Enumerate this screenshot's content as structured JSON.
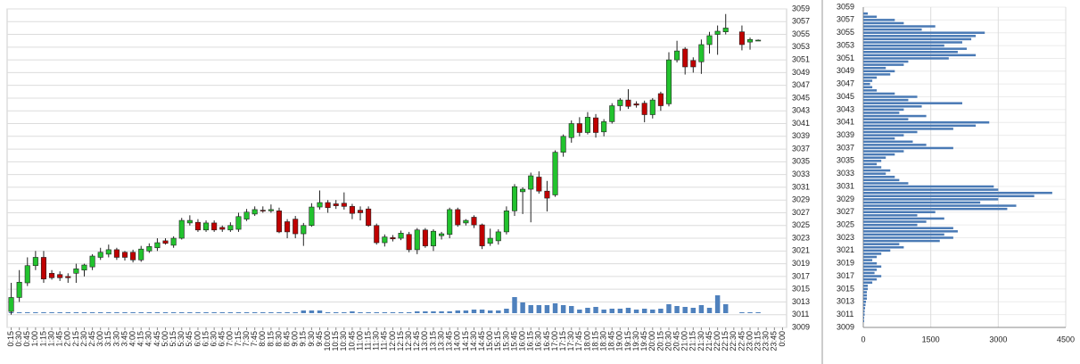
{
  "chart_data": [
    {
      "type": "candlestick",
      "categories": [
        "0:15",
        "0:30",
        "0:45",
        "1:00",
        "1:15",
        "1:30",
        "1:45",
        "2:00",
        "2:15",
        "2:30",
        "2:45",
        "3:00",
        "3:15",
        "3:30",
        "3:45",
        "4:00",
        "4:15",
        "4:30",
        "4:45",
        "5:00",
        "5:15",
        "5:30",
        "5:45",
        "6:00",
        "6:15",
        "6:30",
        "6:45",
        "7:00",
        "7:15",
        "7:30",
        "7:45",
        "8:00",
        "8:15",
        "8:30",
        "8:45",
        "9:00",
        "9:15",
        "9:30",
        "9:45",
        "10:00",
        "10:15",
        "10:30",
        "10:45",
        "11:00",
        "11:15",
        "11:30",
        "11:45",
        "12:00",
        "12:15",
        "12:30",
        "12:45",
        "13:00",
        "13:15",
        "13:30",
        "13:45",
        "14:00",
        "14:15",
        "14:30",
        "14:45",
        "15:00",
        "15:15",
        "15:30",
        "15:45",
        "16:00",
        "16:15",
        "16:30",
        "16:45",
        "17:00",
        "17:15",
        "17:30",
        "17:45",
        "18:00",
        "18:15",
        "18:30",
        "18:45",
        "19:00",
        "19:15",
        "19:30",
        "19:45",
        "20:00",
        "20:15",
        "20:30",
        "20:45",
        "21:00",
        "21:15",
        "21:30",
        "21:45",
        "22:00",
        "22:15",
        "22:30",
        "22:45",
        "23:00",
        "23:15",
        "23:30",
        "23:45",
        "0:00"
      ],
      "open": [
        3011.5,
        3013.7,
        3016,
        3018.7,
        3020,
        3017.5,
        3017.3,
        3017,
        3017.5,
        3018,
        3018.5,
        3020,
        3020.5,
        3021.2,
        3020.8,
        3020.8,
        3019.6,
        3021,
        3021.5,
        3022.6,
        3021.9,
        3023,
        3025.4,
        3025.5,
        3024.3,
        3025.4,
        3024.7,
        3024.3,
        3024.4,
        3026,
        3026.8,
        3027.4,
        3027.3,
        3027.3,
        3025.6,
        3026,
        3023.7,
        3025,
        3027.9,
        3028.6,
        3028.4,
        3028.5,
        3028,
        3027.4,
        3027.6,
        3025,
        3022.3,
        3023.1,
        3023,
        3023.6,
        3021.2,
        3024.3,
        3021.8,
        3023.4,
        3023.6,
        3027.5,
        3025.4,
        3026.3,
        3025.1,
        3022.2,
        3022.6,
        3024,
        3027.3,
        3030.3,
        3030.7,
        3032.6,
        3030.4,
        3029.8,
        3036.5,
        3038.8,
        3041,
        3039.6,
        3041.9,
        3039.7,
        3041.3,
        3043.8,
        3044.7,
        3044.1,
        3044.2,
        3042.4,
        3045.7,
        3044.1,
        3051,
        3052.7,
        3050.9,
        3050.7,
        3053.4,
        3055,
        3055.4,
        null,
        3055.4,
        3053.8,
        3054.1,
        null,
        null,
        null
      ],
      "high": [
        3016,
        3018,
        3020,
        3021,
        3021,
        3018,
        3017.8,
        3017.5,
        3019,
        3019,
        3020.5,
        3021.5,
        3022,
        3021.5,
        3021,
        3021.2,
        3021.8,
        3022.2,
        3023,
        3023,
        3023.3,
        3026.2,
        3026.6,
        3026,
        3025.8,
        3025.8,
        3025,
        3025.5,
        3027,
        3027.6,
        3028,
        3028,
        3028.3,
        3027.8,
        3026,
        3026.5,
        3025.4,
        3028.5,
        3030.5,
        3029,
        3029,
        3030.2,
        3028.4,
        3028,
        3028,
        3025.3,
        3023.6,
        3023.5,
        3024.2,
        3024,
        3024.6,
        3024.6,
        3024.4,
        3024,
        3027.8,
        3027.8,
        3026,
        3026.6,
        3025.3,
        3024.5,
        3024.4,
        3028,
        3031.5,
        3031,
        3033.3,
        3033.5,
        3032,
        3036.8,
        3039.3,
        3041.5,
        3042,
        3042.8,
        3042.5,
        3041.7,
        3044.2,
        3045,
        3046.4,
        3044.5,
        3044.6,
        3045,
        3046,
        3052.2,
        3054,
        3053,
        3051.4,
        3054.2,
        3055.4,
        3056.4,
        3058.2,
        null,
        3056.4,
        3054.5,
        3054.2,
        null,
        null,
        null
      ],
      "low": [
        3011,
        3013,
        3015.5,
        3018,
        3016,
        3016.5,
        3016.3,
        3016,
        3016,
        3017,
        3018,
        3019.6,
        3020,
        3019.6,
        3019.5,
        3019.2,
        3019.3,
        3020.7,
        3021,
        3022,
        3021.5,
        3022.8,
        3025,
        3024,
        3024,
        3024,
        3024,
        3024,
        3024,
        3025.7,
        3026.5,
        3027,
        3027,
        3023.8,
        3023,
        3023,
        3021.8,
        3024.8,
        3027.5,
        3027,
        3027.6,
        3027.5,
        3026,
        3025.8,
        3024.8,
        3022,
        3021.7,
        3022.5,
        3022.7,
        3020.8,
        3020.5,
        3021.5,
        3021,
        3022.8,
        3023,
        3024.8,
        3025,
        3024.6,
        3021.3,
        3021.8,
        3022,
        3023.6,
        3026.5,
        3026.8,
        3025.5,
        3030,
        3027.2,
        3029.5,
        3035.8,
        3038,
        3039,
        3039.3,
        3038.8,
        3039,
        3041,
        3043,
        3043.3,
        3043.5,
        3041.2,
        3041.8,
        3043,
        3043.7,
        3050.6,
        3048.7,
        3049,
        3048.8,
        3052,
        3051.8,
        3055,
        null,
        3052.5,
        3052.6,
        3054,
        null,
        null,
        null
      ],
      "close": [
        3013.7,
        3016.1,
        3018.7,
        3020,
        3016.6,
        3016.8,
        3016.8,
        3016.8,
        3018.2,
        3018.8,
        3020.2,
        3020.8,
        3021.2,
        3020,
        3020,
        3019.6,
        3021.3,
        3021.7,
        3022.3,
        3022.2,
        3023,
        3025.8,
        3025.8,
        3024.3,
        3025.4,
        3024.3,
        3024.4,
        3025,
        3026.4,
        3027.1,
        3027.5,
        3027.3,
        3027.5,
        3024,
        3024,
        3023.7,
        3025,
        3027.9,
        3028.6,
        3027.8,
        3028.1,
        3028,
        3026.9,
        3027,
        3025,
        3022.3,
        3023.2,
        3022.9,
        3023.8,
        3021.2,
        3024.3,
        3021.8,
        3024.1,
        3023.7,
        3027.5,
        3025.1,
        3025.8,
        3025.1,
        3021.8,
        3023,
        3024,
        3027.3,
        3031.1,
        3030.7,
        3032.8,
        3030.4,
        3029.3,
        3036.5,
        3039,
        3041,
        3039.6,
        3042,
        3039.6,
        3041.3,
        3043.8,
        3044.7,
        3043.7,
        3043.9,
        3042.4,
        3044.7,
        3043.8,
        3051,
        3052.4,
        3049.9,
        3049.9,
        3053.4,
        3054.8,
        3055.5,
        3056,
        null,
        3053.4,
        3054.2,
        3054.1,
        null,
        null,
        null
      ],
      "volume": [
        1,
        1,
        1,
        1,
        1,
        1,
        1,
        1,
        1,
        1,
        1,
        1,
        1,
        1,
        1,
        1,
        1,
        1,
        1,
        1,
        1,
        1,
        1,
        1,
        1,
        1,
        1,
        1,
        1,
        1,
        1,
        1,
        1,
        1,
        1,
        1,
        3,
        3,
        3,
        1,
        1,
        1,
        2,
        1,
        1,
        1,
        1,
        1,
        1,
        1,
        2,
        2,
        2,
        2,
        2,
        3,
        3,
        4,
        4,
        3,
        3,
        5,
        18,
        12,
        9,
        9,
        9,
        11,
        9,
        8,
        4,
        6,
        7,
        4,
        5,
        5,
        6,
        4,
        5,
        4,
        5,
        10,
        8,
        7,
        6,
        9,
        6,
        20,
        10,
        null,
        1,
        1,
        1,
        null,
        null,
        null
      ],
      "up_color": "#22c32e",
      "down_color": "#c00000",
      "volume_color": "#4f81bd",
      "ylim": [
        3009,
        3059
      ],
      "yticks": [
        3009,
        3011,
        3013,
        3015,
        3017,
        3019,
        3021,
        3023,
        3025,
        3027,
        3029,
        3031,
        3033,
        3035,
        3037,
        3039,
        3041,
        3043,
        3045,
        3047,
        3049,
        3051,
        3053,
        3055,
        3057,
        3059
      ],
      "y2lim": [
        -16,
        341
      ],
      "grid": true
    },
    {
      "type": "bar",
      "orientation": "horizontal",
      "levels": [
        3058,
        3057.5,
        3057,
        3056.5,
        3056,
        3055.5,
        3055,
        3054.5,
        3054,
        3053.5,
        3053,
        3052.5,
        3052,
        3051.5,
        3051,
        3050.5,
        3050,
        3049.5,
        3049,
        3048.5,
        3048,
        3047.5,
        3047,
        3046.5,
        3046,
        3045.5,
        3045,
        3044.5,
        3044,
        3043.5,
        3043,
        3042.5,
        3042,
        3041.5,
        3041,
        3040.5,
        3040,
        3039.5,
        3039,
        3038.5,
        3038,
        3037.5,
        3037,
        3036.5,
        3036,
        3035.5,
        3035,
        3034.5,
        3034,
        3033.5,
        3033,
        3032.5,
        3032,
        3031.5,
        3031,
        3030.5,
        3030,
        3029.5,
        3029,
        3028.5,
        3028,
        3027.5,
        3027,
        3026.5,
        3026,
        3025.5,
        3025,
        3024.5,
        3024,
        3023.5,
        3023,
        3022.5,
        3022,
        3021.5,
        3021,
        3020.5,
        3020,
        3019.5,
        3019,
        3018.5,
        3018,
        3017.5,
        3017,
        3016.5,
        3016,
        3015.5,
        3015,
        3014.5,
        3014,
        3013.5,
        3013,
        3012.5,
        3012,
        3011.5,
        3011,
        3010.5,
        3010
      ],
      "values": [
        100,
        300,
        700,
        900,
        1600,
        1300,
        2700,
        2500,
        2400,
        2200,
        1800,
        2300,
        2100,
        2500,
        1900,
        1000,
        900,
        500,
        700,
        600,
        300,
        200,
        150,
        200,
        300,
        700,
        1200,
        1000,
        2200,
        1300,
        900,
        800,
        1400,
        1000,
        2800,
        2500,
        2000,
        1200,
        900,
        700,
        1100,
        1400,
        2000,
        900,
        700,
        500,
        400,
        300,
        400,
        600,
        500,
        700,
        800,
        1000,
        2900,
        3000,
        4200,
        3800,
        3000,
        2600,
        3400,
        3200,
        1600,
        1200,
        1800,
        1400,
        1200,
        2000,
        2100,
        1800,
        2000,
        1700,
        800,
        900,
        600,
        400,
        300,
        200,
        300,
        400,
        300,
        250,
        400,
        300,
        200,
        100,
        100,
        80,
        80,
        80,
        60,
        50,
        40,
        30,
        30,
        20,
        20
      ],
      "color": "#4a7ab5",
      "xlim": [
        0,
        4500
      ],
      "xticks": [
        0,
        1500,
        3000,
        4500
      ],
      "ylim": [
        3009,
        3059
      ],
      "yticks": [
        3009,
        3011,
        3013,
        3015,
        3017,
        3019,
        3021,
        3023,
        3025,
        3027,
        3029,
        3031,
        3033,
        3035,
        3037,
        3039,
        3041,
        3043,
        3045,
        3047,
        3049,
        3051,
        3053,
        3055,
        3057,
        3059
      ],
      "grid": true
    }
  ]
}
